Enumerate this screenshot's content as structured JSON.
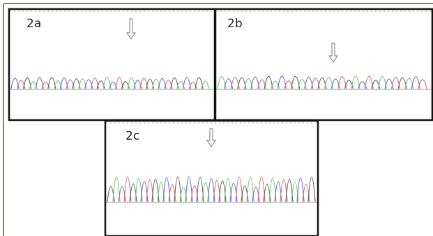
{
  "panels": [
    {
      "label": "2a"
    },
    {
      "label": "2b"
    },
    {
      "label": "2c"
    }
  ]
}
